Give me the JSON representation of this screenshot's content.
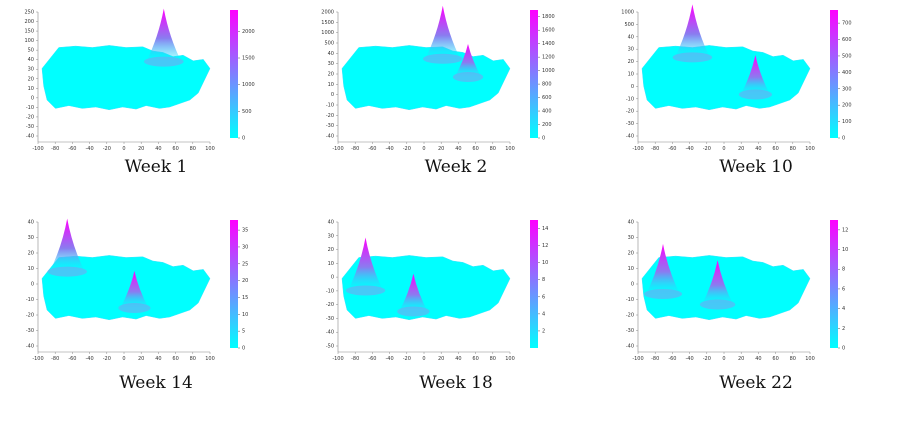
{
  "chart_data": [
    {
      "type": "surface",
      "caption": "Week 1",
      "colormap": [
        "#00ffff",
        "#ff00ff"
      ],
      "colorbar": {
        "min": 0,
        "max": 2400,
        "ticks": [
          0,
          500,
          1000,
          1500,
          2000
        ]
      },
      "x_ticks": [
        -100,
        -80,
        -60,
        -40,
        -20,
        0,
        20,
        40,
        60,
        80,
        100
      ],
      "z_ticks": [
        -40,
        -30,
        -20,
        -10,
        0,
        10,
        20,
        30,
        40,
        50,
        100,
        150,
        200,
        250
      ],
      "peaks": [
        {
          "x": 45,
          "y": 32,
          "value": 2400
        }
      ]
    },
    {
      "type": "surface",
      "caption": "Week 2",
      "colormap": [
        "#00ffff",
        "#ff00ff"
      ],
      "colorbar": {
        "min": 0,
        "max": 1900,
        "ticks": [
          0,
          200,
          400,
          600,
          800,
          1000,
          1200,
          1400,
          1600,
          1800
        ]
      },
      "x_ticks": [
        -100,
        -80,
        -60,
        -40,
        -20,
        0,
        20,
        40,
        60,
        80,
        100
      ],
      "z_ticks": [
        -40,
        -30,
        -20,
        -10,
        0,
        10,
        20,
        30,
        40,
        500,
        1000,
        1500,
        2000
      ],
      "peaks": [
        {
          "x": 20,
          "y": 36,
          "value": 1900
        },
        {
          "x": 50,
          "y": 10,
          "value": 900
        }
      ]
    },
    {
      "type": "surface",
      "caption": "Week 10",
      "colormap": [
        "#00ffff",
        "#ff00ff"
      ],
      "colorbar": {
        "min": 0,
        "max": 780,
        "ticks": [
          0,
          100,
          200,
          300,
          400,
          500,
          600,
          700
        ]
      },
      "x_ticks": [
        -100,
        -80,
        -60,
        -40,
        -20,
        0,
        20,
        40,
        60,
        80,
        100
      ],
      "z_ticks": [
        -40,
        -30,
        -20,
        -10,
        0,
        10,
        20,
        30,
        40,
        500,
        1000
      ],
      "peaks": [
        {
          "x": -40,
          "y": 38,
          "value": 780
        },
        {
          "x": 35,
          "y": -15,
          "value": 500
        }
      ]
    },
    {
      "type": "surface",
      "caption": "Week 14",
      "colormap": [
        "#00ffff",
        "#ff00ff"
      ],
      "colorbar": {
        "min": 0,
        "max": 38,
        "ticks": [
          0,
          5,
          10,
          15,
          20,
          25,
          30,
          35
        ]
      },
      "x_ticks": [
        -100,
        -80,
        -60,
        -40,
        -20,
        0,
        20,
        40,
        60,
        80,
        100
      ],
      "z_ticks": [
        -40,
        -30,
        -20,
        -10,
        0,
        10,
        20,
        30,
        40
      ],
      "peaks": [
        {
          "x": -70,
          "y": 32,
          "value": 38
        },
        {
          "x": 10,
          "y": -20,
          "value": 22
        }
      ]
    },
    {
      "type": "surface",
      "caption": "Week 18",
      "colormap": [
        "#00ffff",
        "#ff00ff"
      ],
      "colorbar": {
        "min": 0,
        "max": 15,
        "ticks": [
          2,
          4,
          6,
          8,
          10,
          12,
          14
        ]
      },
      "x_ticks": [
        -100,
        -80,
        -60,
        -40,
        -20,
        0,
        20,
        40,
        60,
        80,
        100
      ],
      "z_ticks": [
        -50,
        -40,
        -30,
        -20,
        -10,
        0,
        10,
        20,
        30,
        40
      ],
      "peaks": [
        {
          "x": -72,
          "y": 5,
          "value": 15
        },
        {
          "x": -15,
          "y": -25,
          "value": 9
        }
      ]
    },
    {
      "type": "surface",
      "caption": "Week 22",
      "colormap": [
        "#00ffff",
        "#ff00ff"
      ],
      "colorbar": {
        "min": 0,
        "max": 13,
        "ticks": [
          0,
          2,
          4,
          6,
          8,
          10,
          12
        ]
      },
      "x_ticks": [
        -100,
        -80,
        -60,
        -40,
        -20,
        0,
        20,
        40,
        60,
        80,
        100
      ],
      "z_ticks": [
        -40,
        -30,
        -20,
        -10,
        0,
        10,
        20,
        30,
        40
      ],
      "peaks": [
        {
          "x": -75,
          "y": 0,
          "value": 12
        },
        {
          "x": -10,
          "y": -15,
          "value": 10
        }
      ]
    }
  ]
}
